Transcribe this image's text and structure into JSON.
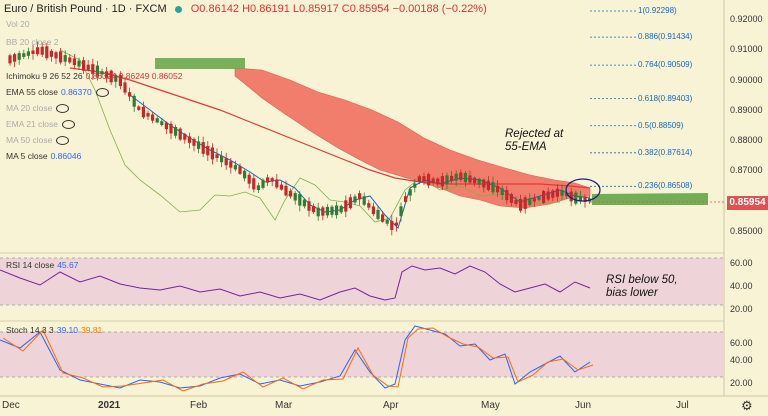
{
  "header": {
    "symbol": "Euro / British Pound · 1D · FXCM",
    "ohlc": "O0.86142 H0.86191 L0.85917 C0.85954 −0.00188 (−0.22%)"
  },
  "indicators": [
    {
      "label": "Vol 20",
      "value": "",
      "faint": true
    },
    {
      "label": "BB 20 close 2",
      "value": "",
      "faint": true
    },
    {
      "label": "",
      "value": "",
      "faint": true
    },
    {
      "label": "Ichimoku 9 26 52 26",
      "value": "0.86324  0.86249  0.86052",
      "faint": false
    },
    {
      "label": "EMA 55 close",
      "value": "0.86370",
      "faint": false
    },
    {
      "label": "MA 20 close",
      "value": "",
      "faint": true
    },
    {
      "label": "EMA 21 close",
      "value": "",
      "faint": true
    },
    {
      "label": "MA 50 close",
      "value": "",
      "faint": true
    },
    {
      "label": "MA 5 close",
      "value": "0.86046",
      "faint": false
    }
  ],
  "rsi_panel": {
    "label": "RSI 14 close",
    "value": "45.67"
  },
  "stoch_panel": {
    "label": "Stoch 14 3 3",
    "k": "39.10",
    "d": "39.81"
  },
  "annotations": {
    "rejected": "Rejected at\n55-EMA",
    "rsi_note": "RSI below 50,\nbias lower"
  },
  "price_axis": [
    "0.92000",
    "0.91000",
    "0.90000",
    "0.89000",
    "0.88000",
    "0.87000",
    "0.86000",
    "0.85000"
  ],
  "rsi_axis": [
    "60.00",
    "40.00",
    "20.00"
  ],
  "stoch_axis": [
    "60.00",
    "40.00",
    "20.00"
  ],
  "current_price": "0.85954",
  "time_axis": [
    "Dec",
    "2021",
    "Feb",
    "Mar",
    "Apr",
    "May",
    "Jun",
    "Jul"
  ],
  "fib_levels": [
    {
      "label": "1(0.92298)",
      "price": 0.92298
    },
    {
      "label": "0.886(0.91434)",
      "price": 0.91434
    },
    {
      "label": "0.764(0.90509)",
      "price": 0.90509
    },
    {
      "label": "0.618(0.89403)",
      "price": 0.89403
    },
    {
      "label": "0.5(0.88509)",
      "price": 0.88509
    },
    {
      "label": "0.382(0.87614)",
      "price": 0.87614
    },
    {
      "label": "0.236(0.86508)",
      "price": 0.86508
    }
  ],
  "colors": {
    "background": "#f9f3d6",
    "bull": "#2e7d32",
    "bear": "#c62828",
    "ema": "#e53935",
    "kumo_bear": "#f06a5a",
    "kumo_bull": "#6aaa4e",
    "rsi_line": "#7b1fa2",
    "stoch_k": "#2962ff",
    "stoch_d": "#ff6d00",
    "fib": "#1565c0",
    "price_tag": "#e05252"
  },
  "icons": {
    "settings": "gear-icon"
  }
}
